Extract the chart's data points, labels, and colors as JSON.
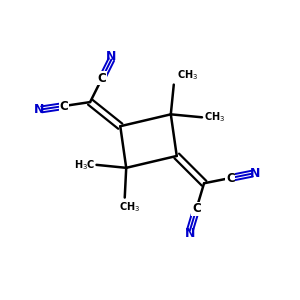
{
  "background": "#ffffff",
  "bond_color": "#000000",
  "cn_color": "#0000cc",
  "text_color": "#000000",
  "figsize": [
    3.0,
    3.0
  ],
  "dpi": 100,
  "xlim": [
    0,
    10
  ],
  "ylim": [
    0,
    10
  ]
}
